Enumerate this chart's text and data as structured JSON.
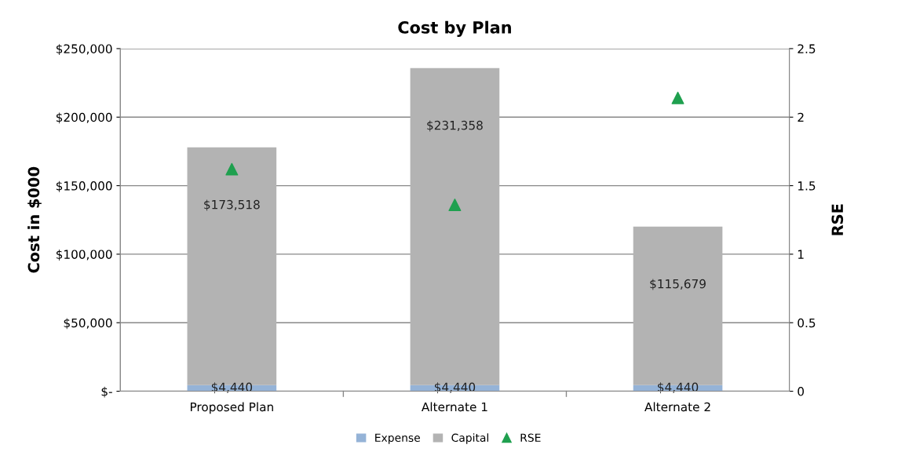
{
  "chart_data": {
    "type": "bar",
    "title": "Cost by Plan",
    "ylabel": "Cost in $000",
    "y2label": "RSE",
    "categories": [
      "Proposed Plan",
      "Alternate 1",
      "Alternate 2"
    ],
    "stacked": true,
    "series": [
      {
        "name": "Expense",
        "color": "#95b3d7",
        "values": [
          4440,
          4440,
          4440
        ],
        "value_labels": [
          "$4,440",
          "$4,440",
          "$4,440"
        ]
      },
      {
        "name": "Capital",
        "color": "#b3b3b3",
        "values": [
          173518,
          231358,
          115679
        ],
        "value_labels": [
          "$173,518",
          "$231,358",
          "$115,679"
        ]
      },
      {
        "name": "RSE",
        "type": "scatter",
        "axis": "y2",
        "color": "#1fa04f",
        "marker": "triangle",
        "values": [
          1.62,
          1.36,
          2.14
        ]
      }
    ],
    "ylim": [
      0,
      250000
    ],
    "yticks": [
      {
        "value": 0,
        "label": "$-"
      },
      {
        "value": 50000,
        "label": "$50,000"
      },
      {
        "value": 100000,
        "label": "$100,000"
      },
      {
        "value": 150000,
        "label": "$150,000"
      },
      {
        "value": 200000,
        "label": "$200,000"
      },
      {
        "value": 250000,
        "label": "$250,000"
      }
    ],
    "y2lim": [
      0,
      2.5
    ],
    "y2ticks": [
      0,
      0.5,
      1,
      1.5,
      2,
      2.5
    ],
    "grid": "y",
    "legend": "bottom"
  }
}
